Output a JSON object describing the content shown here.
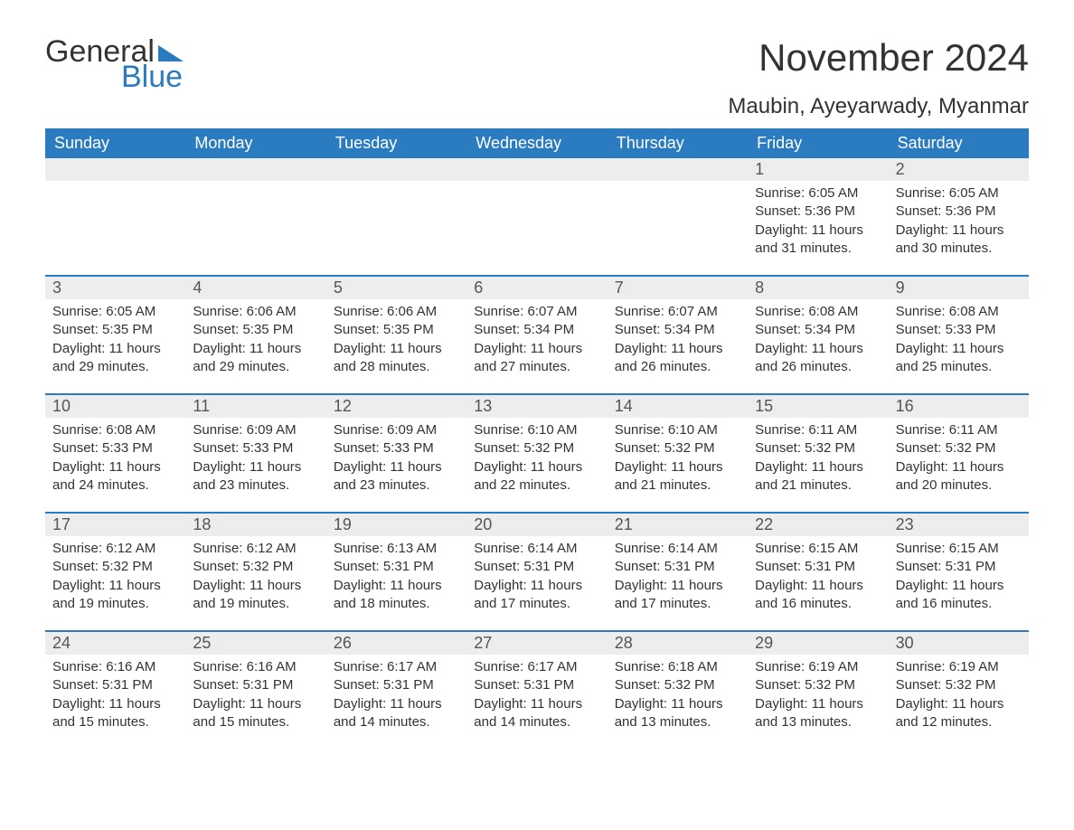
{
  "logo": {
    "word1": "General",
    "word2": "Blue",
    "flag_color": "#2a7bbf"
  },
  "title": "November 2024",
  "location": "Maubin, Ayeyarwady, Myanmar",
  "colors": {
    "header_bg": "#2a7bbf",
    "header_text": "#ffffff",
    "daynum_bg": "#ededed",
    "daynum_text": "#555555",
    "body_text": "#333333",
    "rule": "#2a7bbf",
    "page_bg": "#ffffff"
  },
  "typography": {
    "title_fontsize": 42,
    "location_fontsize": 24,
    "weekday_fontsize": 18,
    "daynum_fontsize": 18,
    "body_fontsize": 15
  },
  "weekdays": [
    "Sunday",
    "Monday",
    "Tuesday",
    "Wednesday",
    "Thursday",
    "Friday",
    "Saturday"
  ],
  "weeks": [
    [
      null,
      null,
      null,
      null,
      null,
      {
        "n": "1",
        "sunrise": "Sunrise: 6:05 AM",
        "sunset": "Sunset: 5:36 PM",
        "daylight": "Daylight: 11 hours and 31 minutes."
      },
      {
        "n": "2",
        "sunrise": "Sunrise: 6:05 AM",
        "sunset": "Sunset: 5:36 PM",
        "daylight": "Daylight: 11 hours and 30 minutes."
      }
    ],
    [
      {
        "n": "3",
        "sunrise": "Sunrise: 6:05 AM",
        "sunset": "Sunset: 5:35 PM",
        "daylight": "Daylight: 11 hours and 29 minutes."
      },
      {
        "n": "4",
        "sunrise": "Sunrise: 6:06 AM",
        "sunset": "Sunset: 5:35 PM",
        "daylight": "Daylight: 11 hours and 29 minutes."
      },
      {
        "n": "5",
        "sunrise": "Sunrise: 6:06 AM",
        "sunset": "Sunset: 5:35 PM",
        "daylight": "Daylight: 11 hours and 28 minutes."
      },
      {
        "n": "6",
        "sunrise": "Sunrise: 6:07 AM",
        "sunset": "Sunset: 5:34 PM",
        "daylight": "Daylight: 11 hours and 27 minutes."
      },
      {
        "n": "7",
        "sunrise": "Sunrise: 6:07 AM",
        "sunset": "Sunset: 5:34 PM",
        "daylight": "Daylight: 11 hours and 26 minutes."
      },
      {
        "n": "8",
        "sunrise": "Sunrise: 6:08 AM",
        "sunset": "Sunset: 5:34 PM",
        "daylight": "Daylight: 11 hours and 26 minutes."
      },
      {
        "n": "9",
        "sunrise": "Sunrise: 6:08 AM",
        "sunset": "Sunset: 5:33 PM",
        "daylight": "Daylight: 11 hours and 25 minutes."
      }
    ],
    [
      {
        "n": "10",
        "sunrise": "Sunrise: 6:08 AM",
        "sunset": "Sunset: 5:33 PM",
        "daylight": "Daylight: 11 hours and 24 minutes."
      },
      {
        "n": "11",
        "sunrise": "Sunrise: 6:09 AM",
        "sunset": "Sunset: 5:33 PM",
        "daylight": "Daylight: 11 hours and 23 minutes."
      },
      {
        "n": "12",
        "sunrise": "Sunrise: 6:09 AM",
        "sunset": "Sunset: 5:33 PM",
        "daylight": "Daylight: 11 hours and 23 minutes."
      },
      {
        "n": "13",
        "sunrise": "Sunrise: 6:10 AM",
        "sunset": "Sunset: 5:32 PM",
        "daylight": "Daylight: 11 hours and 22 minutes."
      },
      {
        "n": "14",
        "sunrise": "Sunrise: 6:10 AM",
        "sunset": "Sunset: 5:32 PM",
        "daylight": "Daylight: 11 hours and 21 minutes."
      },
      {
        "n": "15",
        "sunrise": "Sunrise: 6:11 AM",
        "sunset": "Sunset: 5:32 PM",
        "daylight": "Daylight: 11 hours and 21 minutes."
      },
      {
        "n": "16",
        "sunrise": "Sunrise: 6:11 AM",
        "sunset": "Sunset: 5:32 PM",
        "daylight": "Daylight: 11 hours and 20 minutes."
      }
    ],
    [
      {
        "n": "17",
        "sunrise": "Sunrise: 6:12 AM",
        "sunset": "Sunset: 5:32 PM",
        "daylight": "Daylight: 11 hours and 19 minutes."
      },
      {
        "n": "18",
        "sunrise": "Sunrise: 6:12 AM",
        "sunset": "Sunset: 5:32 PM",
        "daylight": "Daylight: 11 hours and 19 minutes."
      },
      {
        "n": "19",
        "sunrise": "Sunrise: 6:13 AM",
        "sunset": "Sunset: 5:31 PM",
        "daylight": "Daylight: 11 hours and 18 minutes."
      },
      {
        "n": "20",
        "sunrise": "Sunrise: 6:14 AM",
        "sunset": "Sunset: 5:31 PM",
        "daylight": "Daylight: 11 hours and 17 minutes."
      },
      {
        "n": "21",
        "sunrise": "Sunrise: 6:14 AM",
        "sunset": "Sunset: 5:31 PM",
        "daylight": "Daylight: 11 hours and 17 minutes."
      },
      {
        "n": "22",
        "sunrise": "Sunrise: 6:15 AM",
        "sunset": "Sunset: 5:31 PM",
        "daylight": "Daylight: 11 hours and 16 minutes."
      },
      {
        "n": "23",
        "sunrise": "Sunrise: 6:15 AM",
        "sunset": "Sunset: 5:31 PM",
        "daylight": "Daylight: 11 hours and 16 minutes."
      }
    ],
    [
      {
        "n": "24",
        "sunrise": "Sunrise: 6:16 AM",
        "sunset": "Sunset: 5:31 PM",
        "daylight": "Daylight: 11 hours and 15 minutes."
      },
      {
        "n": "25",
        "sunrise": "Sunrise: 6:16 AM",
        "sunset": "Sunset: 5:31 PM",
        "daylight": "Daylight: 11 hours and 15 minutes."
      },
      {
        "n": "26",
        "sunrise": "Sunrise: 6:17 AM",
        "sunset": "Sunset: 5:31 PM",
        "daylight": "Daylight: 11 hours and 14 minutes."
      },
      {
        "n": "27",
        "sunrise": "Sunrise: 6:17 AM",
        "sunset": "Sunset: 5:31 PM",
        "daylight": "Daylight: 11 hours and 14 minutes."
      },
      {
        "n": "28",
        "sunrise": "Sunrise: 6:18 AM",
        "sunset": "Sunset: 5:32 PM",
        "daylight": "Daylight: 11 hours and 13 minutes."
      },
      {
        "n": "29",
        "sunrise": "Sunrise: 6:19 AM",
        "sunset": "Sunset: 5:32 PM",
        "daylight": "Daylight: 11 hours and 13 minutes."
      },
      {
        "n": "30",
        "sunrise": "Sunrise: 6:19 AM",
        "sunset": "Sunset: 5:32 PM",
        "daylight": "Daylight: 11 hours and 12 minutes."
      }
    ]
  ]
}
